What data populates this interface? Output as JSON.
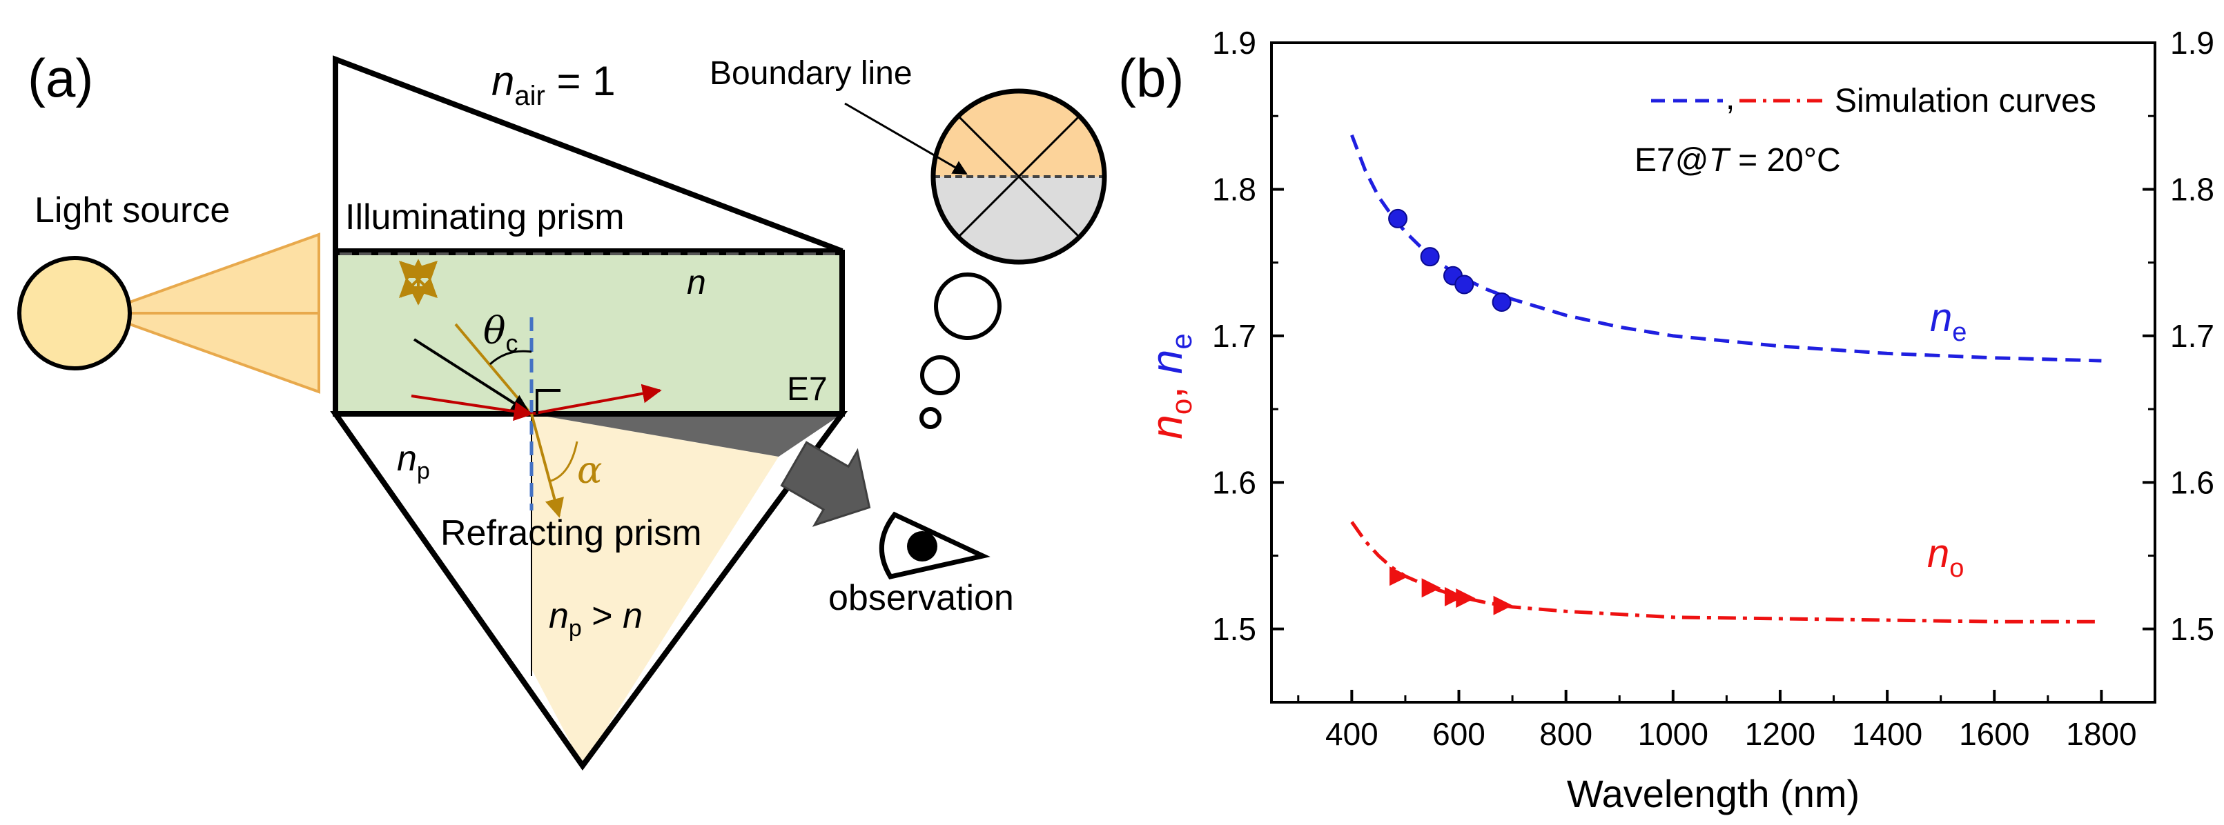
{
  "panel_a": {
    "label": "(a)",
    "n_air_symbol": "n",
    "n_air_sub": "air",
    "n_air_value": " = 1",
    "boundary_line_label": "Boundary line",
    "light_source_label": "Light source",
    "illuminating_prism_label": "Illuminating prism",
    "lc_n_symbol": "n",
    "lc_material_label": "E7",
    "theta_symbol": "θ",
    "theta_sub": "c",
    "alpha_symbol": "α",
    "np_symbol": "n",
    "np_sub": "p",
    "refracting_prism_label": "Refracting prism",
    "np_gt_n_symbol": "n",
    "np_gt_n_sub": "p",
    "np_gt_n_text": " > ",
    "np_gt_n_n": "n",
    "observation_label": "observation",
    "colors": {
      "lc_fill": "#d4e6c4",
      "prism_fill": "#fdf0d0",
      "source_fill": "#fde5a4",
      "beam_fill": "#fde0a4",
      "view_top": "#fcd39a",
      "view_bottom": "#dcdcdc",
      "ray_red": "#c00000",
      "ray_gold": "#b8860b",
      "dark_wedge": "#666666",
      "dashed_blue": "#4472c4"
    }
  },
  "panel_b": {
    "label": "(b)",
    "chart_data": {
      "type": "line",
      "title": "",
      "xlabel": "Wavelength (nm)",
      "ylabel": "n_o, n_e",
      "ylabel_o": "n",
      "ylabel_o_sub": "o",
      "ylabel_sep": ", ",
      "ylabel_e": "n",
      "ylabel_e_sub": "e",
      "xlim": [
        250,
        1900
      ],
      "ylim": [
        1.45,
        1.9
      ],
      "xticks": [
        400,
        600,
        800,
        1000,
        1200,
        1400,
        1600,
        1800
      ],
      "xtick_labels": [
        "400",
        "600",
        "800",
        "1000",
        "1200",
        "1400",
        "1600",
        "1800"
      ],
      "yticks": [
        1.5,
        1.6,
        1.7,
        1.8,
        1.9
      ],
      "ytick_labels": [
        "1.5",
        "1.6",
        "1.7",
        "1.8",
        "1.9"
      ],
      "legend_sep": ",",
      "legend_label": "Simulation curves",
      "condition_label": "E7@",
      "condition_T": "T",
      "condition_value": " = 20°C",
      "ne_curve_label": "n",
      "ne_curve_sub": "e",
      "no_curve_label": "n",
      "no_curve_sub": "o",
      "series": [
        {
          "name": "n_e simulation",
          "color": "#1f1fe0",
          "style": "dash",
          "x": [
            400,
            425,
            450,
            475,
            500,
            550,
            600,
            650,
            700,
            800,
            900,
            1000,
            1200,
            1400,
            1600,
            1800
          ],
          "y": [
            1.837,
            1.813,
            1.795,
            1.782,
            1.771,
            1.753,
            1.741,
            1.732,
            1.725,
            1.714,
            1.706,
            1.7,
            1.693,
            1.688,
            1.685,
            1.683
          ]
        },
        {
          "name": "n_o simulation",
          "color": "#ee1111",
          "style": "dashdot",
          "x": [
            400,
            425,
            450,
            475,
            500,
            550,
            600,
            650,
            700,
            800,
            900,
            1000,
            1200,
            1400,
            1600,
            1800
          ],
          "y": [
            1.573,
            1.56,
            1.55,
            1.542,
            1.536,
            1.528,
            1.522,
            1.518,
            1.515,
            1.512,
            1.51,
            1.508,
            1.507,
            1.506,
            1.505,
            1.505
          ]
        },
        {
          "name": "n_e measured",
          "color": "#1f1fe0",
          "marker": "circle",
          "x": [
            486,
            546,
            589,
            610,
            680
          ],
          "y": [
            1.78,
            1.754,
            1.741,
            1.735,
            1.723
          ]
        },
        {
          "name": "n_o measured",
          "color": "#ee1111",
          "marker": "triangle-right",
          "x": [
            486,
            546,
            589,
            610,
            680
          ],
          "y": [
            1.536,
            1.528,
            1.522,
            1.521,
            1.516
          ]
        }
      ]
    }
  }
}
